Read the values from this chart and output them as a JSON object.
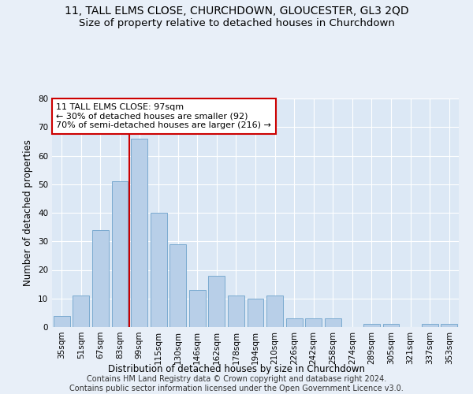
{
  "title": "11, TALL ELMS CLOSE, CHURCHDOWN, GLOUCESTER, GL3 2QD",
  "subtitle": "Size of property relative to detached houses in Churchdown",
  "xlabel": "Distribution of detached houses by size in Churchdown",
  "ylabel": "Number of detached properties",
  "bar_labels": [
    "35sqm",
    "51sqm",
    "67sqm",
    "83sqm",
    "99sqm",
    "115sqm",
    "130sqm",
    "146sqm",
    "162sqm",
    "178sqm",
    "194sqm",
    "210sqm",
    "226sqm",
    "242sqm",
    "258sqm",
    "274sqm",
    "289sqm",
    "305sqm",
    "321sqm",
    "337sqm",
    "353sqm"
  ],
  "bar_values": [
    4,
    11,
    34,
    51,
    66,
    40,
    29,
    13,
    18,
    11,
    10,
    11,
    3,
    3,
    3,
    0,
    1,
    1,
    0,
    1,
    1
  ],
  "bar_color": "#b8cfe8",
  "bar_edge_color": "#7aaad0",
  "property_bin_index": 4,
  "vline_color": "#cc0000",
  "annotation_text": "11 TALL ELMS CLOSE: 97sqm\n← 30% of detached houses are smaller (92)\n70% of semi-detached houses are larger (216) →",
  "annotation_box_color": "#ffffff",
  "annotation_box_edge": "#cc0000",
  "ylim": [
    0,
    80
  ],
  "yticks": [
    0,
    10,
    20,
    30,
    40,
    50,
    60,
    70,
    80
  ],
  "footer": "Contains HM Land Registry data © Crown copyright and database right 2024.\nContains public sector information licensed under the Open Government Licence v3.0.",
  "bg_color": "#e8eff8",
  "plot_bg_color": "#dce8f5",
  "grid_color": "#ffffff",
  "title_fontsize": 10,
  "subtitle_fontsize": 9.5,
  "label_fontsize": 8.5,
  "tick_fontsize": 7.5,
  "annotation_fontsize": 8,
  "footer_fontsize": 7
}
